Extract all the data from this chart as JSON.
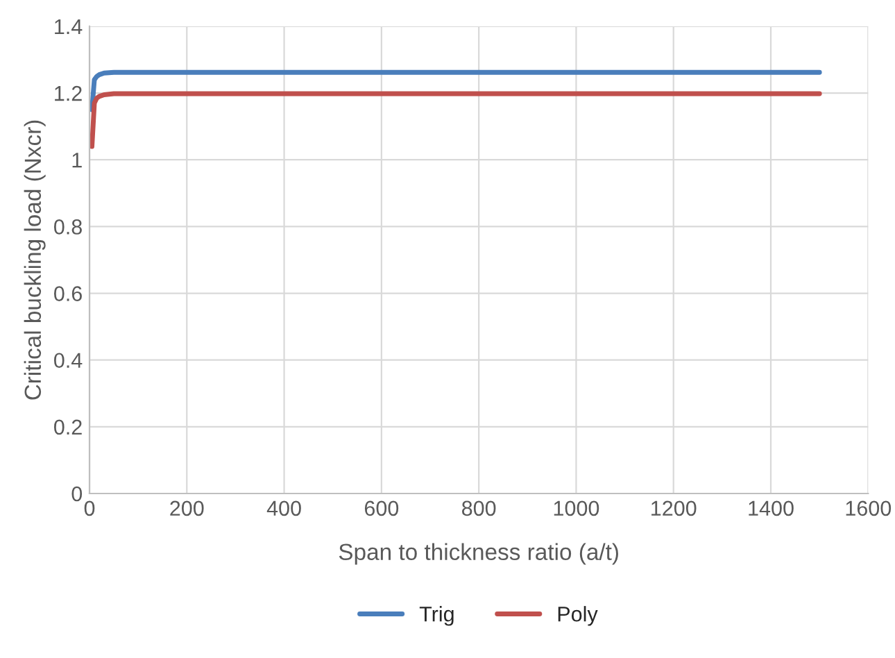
{
  "chart_data": {
    "type": "line",
    "xlabel": "Span to thickness ratio (a/t)",
    "ylabel": "Critical buckling load (Nxcr)",
    "xlim": [
      0,
      1600
    ],
    "xticks": [
      0,
      200,
      400,
      600,
      800,
      1000,
      1200,
      1400,
      1600
    ],
    "ylim": [
      0,
      1.4
    ],
    "yticks": [
      0,
      0.2,
      0.4,
      0.6,
      0.8,
      1,
      1.2,
      1.4
    ],
    "grid": true,
    "legend": "bottom",
    "marker": "none",
    "line_style": "solid",
    "series": [
      {
        "name": "Trig",
        "color": "#4a7ebb",
        "x": [
          5,
          10,
          15,
          20,
          30,
          50,
          100,
          1500
        ],
        "values": [
          1.15,
          1.24,
          1.25,
          1.255,
          1.26,
          1.262,
          1.262,
          1.262
        ]
      },
      {
        "name": "Poly",
        "color": "#c0504d",
        "x": [
          5,
          10,
          15,
          20,
          30,
          50,
          100,
          1500
        ],
        "values": [
          1.04,
          1.17,
          1.185,
          1.19,
          1.195,
          1.198,
          1.198,
          1.198
        ]
      }
    ]
  }
}
